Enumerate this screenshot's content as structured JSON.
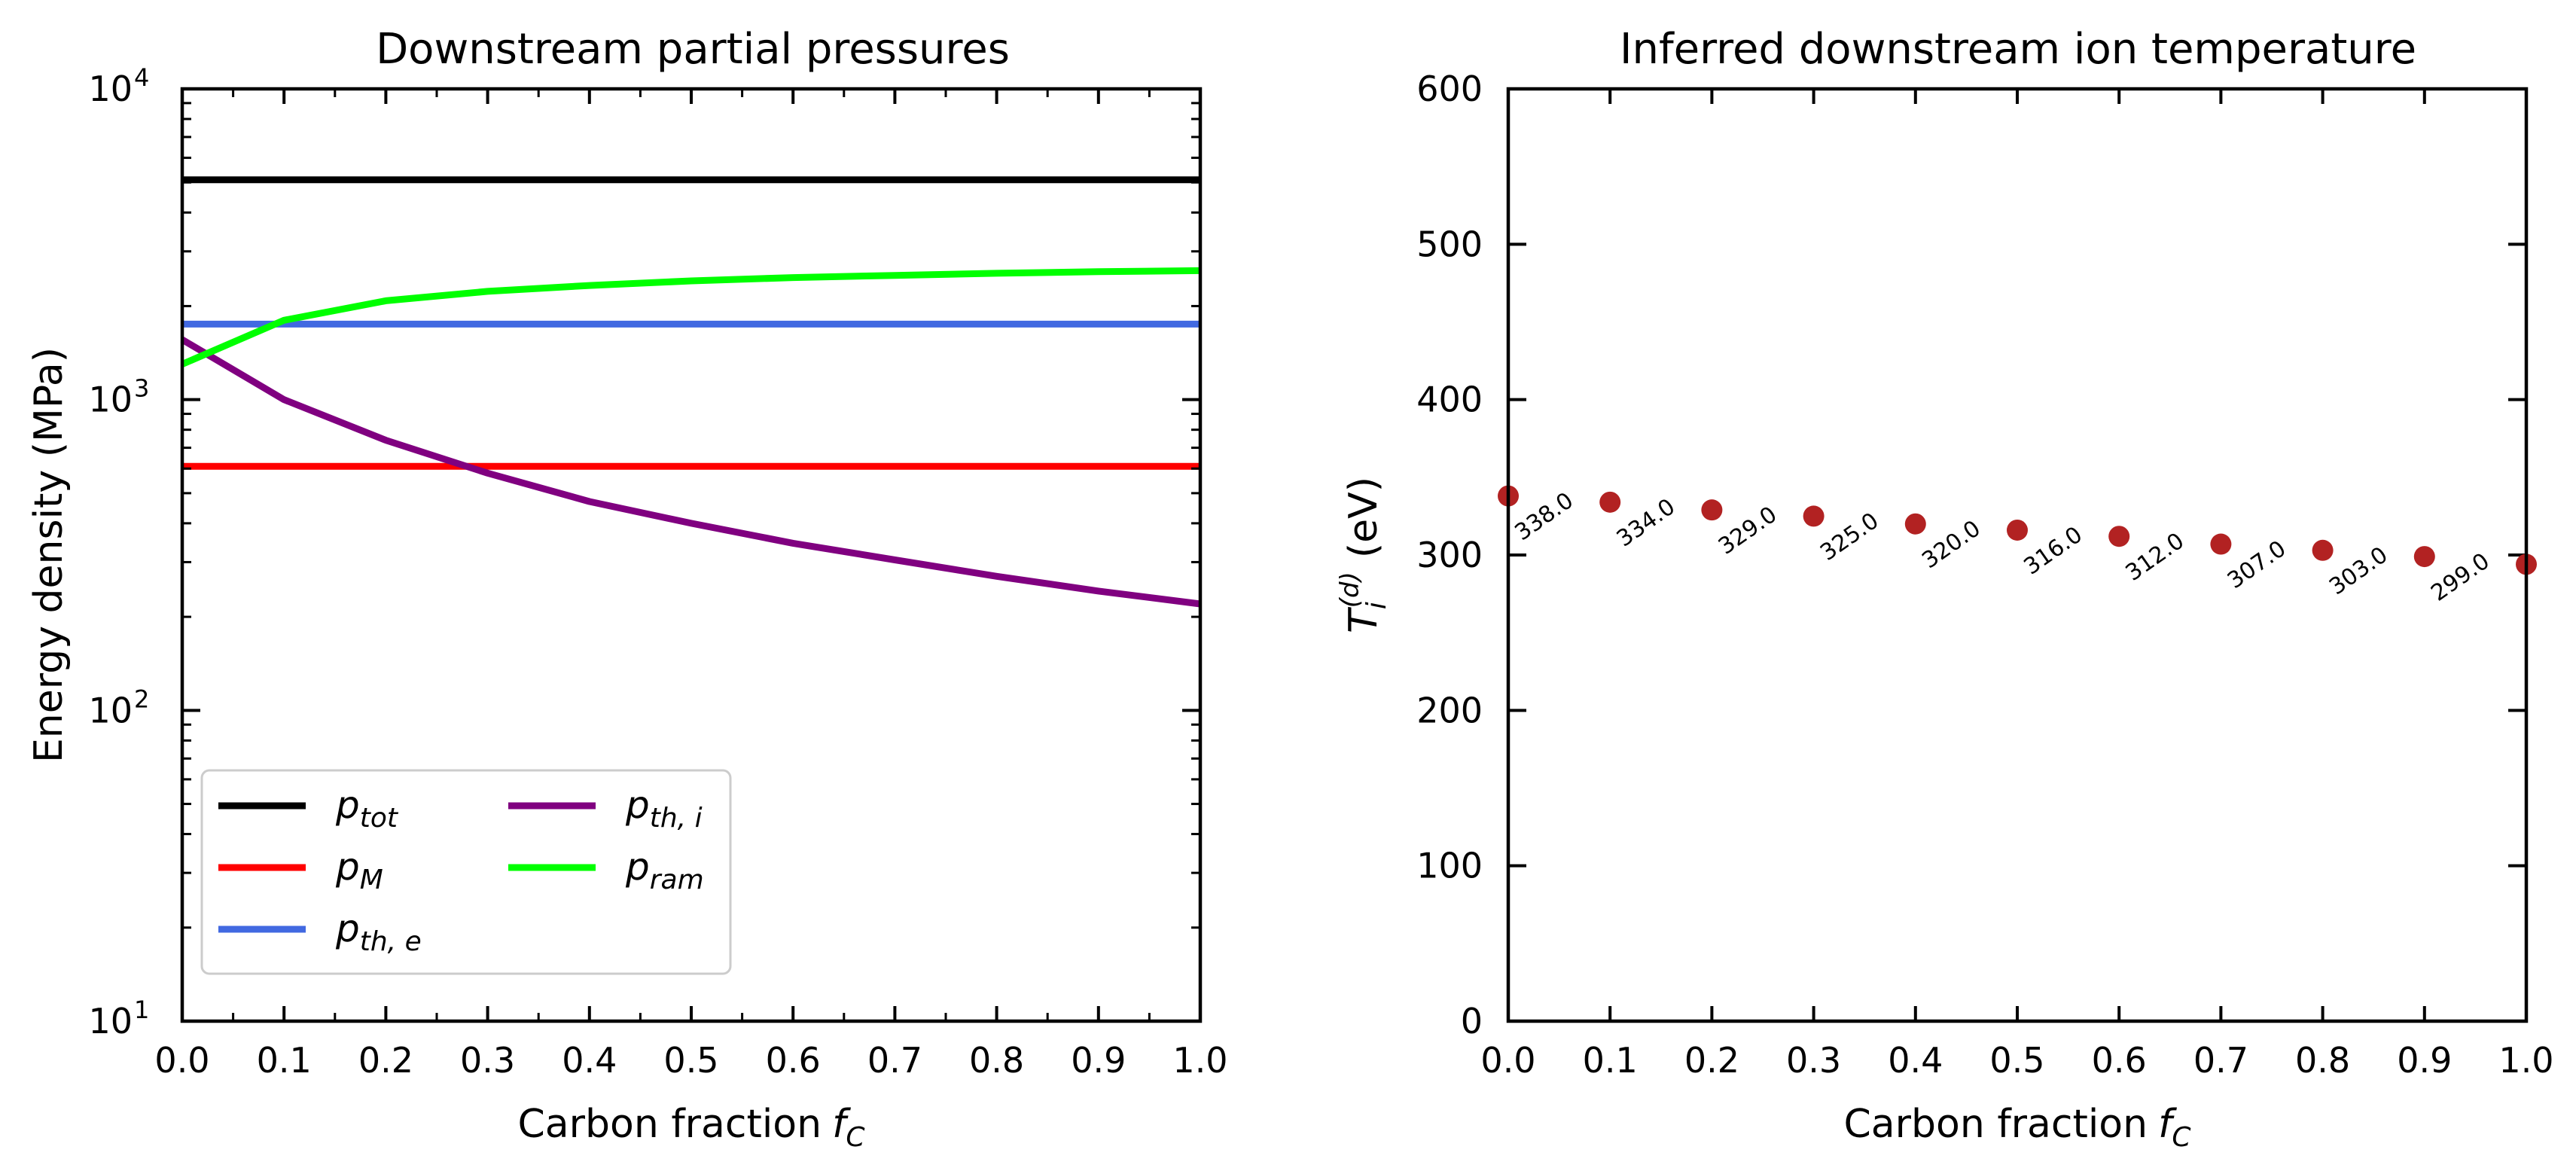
{
  "chart_data": [
    {
      "type": "line",
      "title": "Downstream partial pressures",
      "xlabel": "Carbon fraction",
      "xlabel_symbol": "f",
      "xlabel_sub": "C",
      "ylabel": "Energy density (MPa)",
      "yscale": "log",
      "xlim": [
        0.0,
        1.0
      ],
      "ylim": [
        10,
        10000
      ],
      "x": [
        0.0,
        0.1,
        0.2,
        0.3,
        0.4,
        0.5,
        0.6,
        0.7,
        0.8,
        0.9,
        1.0
      ],
      "x_tick_labels": [
        "0.0",
        "0.1",
        "0.2",
        "0.3",
        "0.4",
        "0.5",
        "0.6",
        "0.7",
        "0.8",
        "0.9",
        "1.0"
      ],
      "y_ticks": [
        {
          "value": 10,
          "base": "10",
          "exp": "1"
        },
        {
          "value": 100,
          "base": "10",
          "exp": "2"
        },
        {
          "value": 1000,
          "base": "10",
          "exp": "3"
        },
        {
          "value": 10000,
          "base": "10",
          "exp": "4"
        }
      ],
      "series": [
        {
          "key": "ptot",
          "name_main": "p",
          "name_sub": "tot",
          "color": "#000000",
          "values": [
            5100,
            5100,
            5100,
            5100,
            5100,
            5100,
            5100,
            5100,
            5100,
            5100,
            5100
          ]
        },
        {
          "key": "pM",
          "name_main": "p",
          "name_sub": "M",
          "color": "#ff0000",
          "values": [
            610,
            610,
            610,
            610,
            610,
            610,
            610,
            610,
            610,
            610,
            610
          ]
        },
        {
          "key": "pthe",
          "name_main": "p",
          "name_sub": "th, e",
          "color": "#4169e1",
          "values": [
            1750,
            1750,
            1750,
            1750,
            1750,
            1750,
            1750,
            1750,
            1750,
            1750,
            1750
          ]
        },
        {
          "key": "pthi",
          "name_main": "p",
          "name_sub": "th, i",
          "color": "#800080",
          "values": [
            1560,
            1000,
            740,
            580,
            470,
            400,
            345,
            305,
            270,
            242,
            220
          ]
        },
        {
          "key": "pram",
          "name_main": "p",
          "name_sub": "ram",
          "color": "#00ff00",
          "values": [
            1300,
            1800,
            2080,
            2230,
            2330,
            2410,
            2470,
            2510,
            2550,
            2580,
            2600
          ]
        }
      ],
      "legend": {
        "position": "lower-left",
        "columns": 2
      }
    },
    {
      "type": "scatter",
      "title": "Inferred downstream ion temperature",
      "xlabel": "Carbon fraction",
      "xlabel_symbol": "f",
      "xlabel_sub": "C",
      "ylabel": "(eV)",
      "ylabel_symbol": "T",
      "ylabel_sub": "i",
      "ylabel_sup": "(d)",
      "xlim": [
        0.0,
        1.0
      ],
      "ylim": [
        0,
        600
      ],
      "x": [
        0.0,
        0.1,
        0.2,
        0.3,
        0.4,
        0.5,
        0.6,
        0.7,
        0.8,
        0.9,
        1.0
      ],
      "x_tick_labels": [
        "0.0",
        "0.1",
        "0.2",
        "0.3",
        "0.4",
        "0.5",
        "0.6",
        "0.7",
        "0.8",
        "0.9",
        "1.0"
      ],
      "y_tick_labels": [
        "0",
        "100",
        "200",
        "300",
        "400",
        "500",
        "600"
      ],
      "values": [
        338,
        334,
        329,
        325,
        320,
        316,
        312,
        307,
        303,
        299,
        294
      ],
      "data_labels": [
        "338.0",
        "334.0",
        "329.0",
        "325.0",
        "320.0",
        "316.0",
        "312.0",
        "307.0",
        "303.0",
        "299.0",
        ""
      ],
      "color": "#b22222"
    }
  ]
}
